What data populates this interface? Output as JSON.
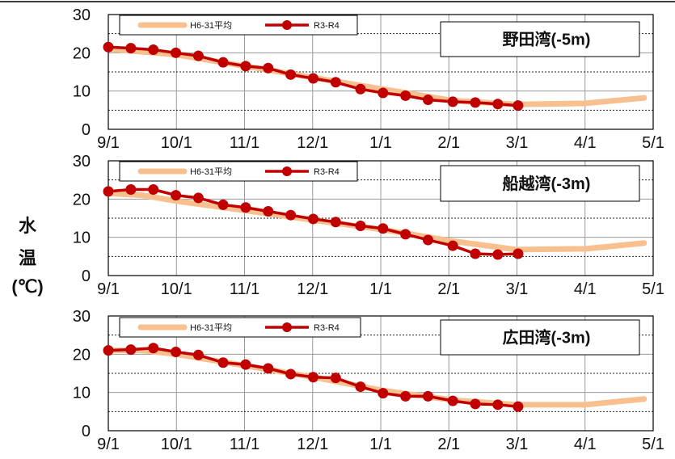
{
  "colors": {
    "avg": "#F8C08F",
    "recent": "#C00000",
    "frame": "#000000",
    "grid": "#777777"
  },
  "ylabel_chars": [
    "水",
    "温",
    "(℃)"
  ],
  "chart_data": [
    {
      "type": "line",
      "title": "野田湾(-5m)",
      "x_ticks": [
        "9/1",
        "10/1",
        "11/1",
        "12/1",
        "1/1",
        "2/1",
        "3/1",
        "4/1",
        "5/1"
      ],
      "y_ticks": [
        "0",
        "10",
        "20",
        "30"
      ],
      "ylim": [
        0,
        30
      ],
      "xlim_days": [
        0,
        242
      ],
      "series": [
        {
          "name": "H6-31平均",
          "x_days": [
            0,
            30,
            61,
            91,
            122,
            153,
            181,
            212,
            238
          ],
          "values": [
            21.0,
            19.5,
            16.5,
            13.5,
            10.5,
            7.5,
            6.5,
            6.8,
            8.2
          ]
        },
        {
          "name": "R3-R4",
          "x_days": [
            0,
            10,
            20,
            30,
            40,
            51,
            61,
            71,
            81,
            91,
            101,
            112,
            122,
            132,
            142,
            153,
            163,
            173,
            182
          ],
          "values": [
            21.5,
            21.2,
            20.8,
            20.0,
            19.2,
            17.5,
            16.5,
            16.0,
            14.3,
            13.3,
            12.3,
            10.5,
            9.5,
            8.8,
            7.7,
            7.2,
            7.0,
            6.6,
            6.2
          ]
        }
      ]
    },
    {
      "type": "line",
      "title": "船越湾(-3m)",
      "x_ticks": [
        "9/1",
        "10/1",
        "11/1",
        "12/1",
        "1/1",
        "2/1",
        "3/1",
        "4/1",
        "5/1"
      ],
      "y_ticks": [
        "0",
        "10",
        "20",
        "30"
      ],
      "ylim": [
        0,
        30
      ],
      "xlim_days": [
        0,
        242
      ],
      "series": [
        {
          "name": "H6-31平均",
          "x_days": [
            0,
            15,
            30,
            61,
            91,
            122,
            153,
            181,
            212,
            238
          ],
          "values": [
            21.5,
            21.0,
            19.5,
            17.0,
            14.5,
            12.0,
            9.0,
            6.8,
            7.0,
            8.5
          ]
        },
        {
          "name": "R3-R4",
          "x_days": [
            0,
            10,
            20,
            30,
            40,
            51,
            61,
            71,
            81,
            91,
            101,
            112,
            122,
            132,
            142,
            153,
            163,
            173,
            182
          ],
          "values": [
            22.0,
            22.5,
            22.5,
            21.0,
            20.3,
            18.5,
            17.8,
            16.8,
            15.8,
            14.8,
            14.0,
            13.0,
            12.3,
            10.8,
            9.3,
            7.8,
            5.7,
            5.5,
            5.7
          ]
        }
      ]
    },
    {
      "type": "line",
      "title": "広田湾(-3m)",
      "x_ticks": [
        "9/1",
        "10/1",
        "11/1",
        "12/1",
        "1/1",
        "2/1",
        "3/1",
        "4/1",
        "5/1"
      ],
      "y_ticks": [
        "0",
        "10",
        "20",
        "30"
      ],
      "ylim": [
        0,
        30
      ],
      "xlim_days": [
        0,
        242
      ],
      "series": [
        {
          "name": "H6-31平均",
          "x_days": [
            0,
            15,
            30,
            61,
            91,
            122,
            153,
            181,
            212,
            238
          ],
          "values": [
            21.0,
            21.0,
            20.0,
            17.0,
            14.0,
            10.5,
            8.0,
            6.8,
            6.8,
            8.3
          ]
        },
        {
          "name": "R3-R4",
          "x_days": [
            0,
            10,
            20,
            30,
            40,
            51,
            61,
            71,
            81,
            91,
            101,
            112,
            122,
            132,
            142,
            153,
            163,
            173,
            182
          ],
          "values": [
            21.0,
            21.2,
            21.6,
            20.6,
            19.8,
            17.8,
            17.3,
            16.3,
            14.8,
            14.0,
            13.8,
            11.5,
            9.8,
            9.0,
            9.0,
            7.8,
            7.0,
            6.8,
            6.3
          ]
        }
      ]
    }
  ]
}
